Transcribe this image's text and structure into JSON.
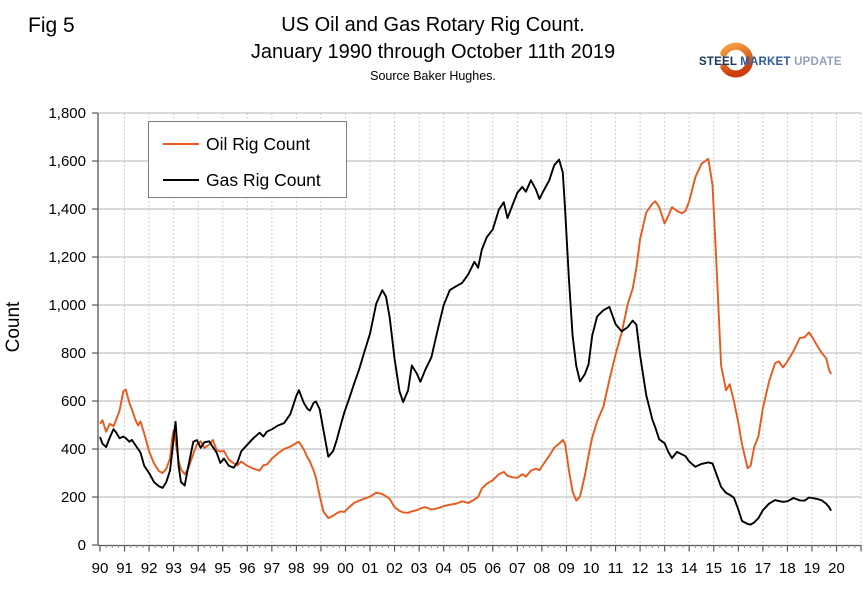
{
  "figure": {
    "fig_label": "Fig 5"
  },
  "logo": {
    "steel": "STEEL",
    "market": "MARKET",
    "update": "UPDATE",
    "swoosh_color_top": "#f6a33f",
    "swoosh_color_bottom": "#cc3d0f"
  },
  "chart_data": {
    "type": "line",
    "title_line1": "US Oil and Gas Rotary Rig Count.",
    "title_line2": "January 1990 through October 11th 2019",
    "source": "Source Baker Hughes.",
    "ylabel": "Count",
    "xlabel": "",
    "ylim": [
      0,
      1800
    ],
    "ytick_step": 200,
    "grid": {
      "horizontal": "solid",
      "vertical": "dotted"
    },
    "legend_position": "top-left-inside",
    "y_tick_labels": [
      "0",
      "200",
      "400",
      "600",
      "800",
      "1,000",
      "1,200",
      "1,400",
      "1,600",
      "1,800"
    ],
    "x_tick_labels": [
      "90",
      "91",
      "92",
      "93",
      "94",
      "95",
      "96",
      "97",
      "98",
      "99",
      "00",
      "01",
      "02",
      "03",
      "04",
      "05",
      "06",
      "07",
      "08",
      "09",
      "10",
      "11",
      "12",
      "13",
      "14",
      "15",
      "16",
      "17",
      "18",
      "19",
      "20"
    ],
    "x_start_year": 1990,
    "x_end_year": 2021,
    "x": [
      1990.0,
      1990.1,
      1990.25,
      1990.4,
      1990.55,
      1990.65,
      1990.8,
      1990.95,
      1991.05,
      1991.2,
      1991.3,
      1991.45,
      1991.55,
      1991.65,
      1991.8,
      1992.0,
      1992.2,
      1992.4,
      1992.55,
      1992.7,
      1992.85,
      1992.95,
      1993.0,
      1993.08,
      1993.2,
      1993.3,
      1993.45,
      1993.6,
      1993.8,
      1993.95,
      1994.1,
      1994.25,
      1994.45,
      1994.6,
      1994.75,
      1994.9,
      1995.05,
      1995.25,
      1995.45,
      1995.6,
      1995.75,
      1996.0,
      1996.25,
      1996.5,
      1996.65,
      1996.8,
      1997.0,
      1997.25,
      1997.5,
      1997.75,
      1998.0,
      1998.1,
      1998.3,
      1998.45,
      1998.55,
      1998.7,
      1998.8,
      1998.95,
      1999.1,
      1999.3,
      1999.5,
      1999.65,
      1999.8,
      1999.95,
      2000.15,
      2000.35,
      2000.55,
      2000.75,
      2001.0,
      2001.25,
      2001.5,
      2001.65,
      2001.8,
      2002.0,
      2002.2,
      2002.35,
      2002.55,
      2002.7,
      2002.9,
      2003.05,
      2003.25,
      2003.5,
      2003.75,
      2004.0,
      2004.25,
      2004.5,
      2004.75,
      2005.0,
      2005.25,
      2005.4,
      2005.55,
      2005.75,
      2006.0,
      2006.25,
      2006.45,
      2006.6,
      2006.8,
      2007.0,
      2007.2,
      2007.35,
      2007.55,
      2007.75,
      2007.9,
      2008.05,
      2008.3,
      2008.5,
      2008.7,
      2008.85,
      2008.95,
      2009.1,
      2009.25,
      2009.4,
      2009.55,
      2009.75,
      2009.9,
      2010.05,
      2010.25,
      2010.5,
      2010.75,
      2011.0,
      2011.25,
      2011.5,
      2011.7,
      2011.85,
      2012.0,
      2012.25,
      2012.5,
      2012.62,
      2012.78,
      2013.0,
      2013.15,
      2013.3,
      2013.5,
      2013.7,
      2013.85,
      2014.0,
      2014.25,
      2014.5,
      2014.78,
      2014.95,
      2015.1,
      2015.3,
      2015.5,
      2015.65,
      2015.82,
      2016.0,
      2016.15,
      2016.38,
      2016.5,
      2016.65,
      2016.82,
      2017.0,
      2017.25,
      2017.5,
      2017.65,
      2017.82,
      2018.0,
      2018.25,
      2018.5,
      2018.7,
      2018.88,
      2019.0,
      2019.2,
      2019.4,
      2019.58,
      2019.7,
      2019.78
    ],
    "series": [
      {
        "name": "Oil Rig Count",
        "color": "#e8591b",
        "values": [
          505,
          520,
          472,
          505,
          495,
          520,
          560,
          640,
          648,
          590,
          565,
          520,
          498,
          515,
          465,
          390,
          340,
          308,
          300,
          318,
          360,
          452,
          478,
          430,
          350,
          315,
          295,
          320,
          380,
          420,
          432,
          405,
          418,
          438,
          395,
          390,
          392,
          355,
          340,
          332,
          348,
          330,
          318,
          310,
          332,
          335,
          360,
          382,
          400,
          410,
          425,
          430,
          398,
          365,
          348,
          310,
          280,
          205,
          140,
          112,
          122,
          133,
          140,
          138,
          158,
          175,
          185,
          192,
          202,
          218,
          212,
          203,
          192,
          158,
          142,
          136,
          134,
          140,
          145,
          152,
          158,
          148,
          153,
          162,
          168,
          172,
          182,
          175,
          190,
          200,
          235,
          255,
          270,
          295,
          305,
          288,
          282,
          280,
          295,
          285,
          310,
          318,
          312,
          335,
          372,
          405,
          422,
          438,
          420,
          312,
          222,
          185,
          202,
          290,
          372,
          448,
          515,
          575,
          688,
          795,
          885,
          1005,
          1068,
          1155,
          1275,
          1385,
          1422,
          1432,
          1408,
          1340,
          1372,
          1408,
          1392,
          1382,
          1392,
          1432,
          1532,
          1588,
          1609,
          1500,
          1192,
          748,
          645,
          670,
          600,
          510,
          420,
          320,
          330,
          410,
          452,
          570,
          680,
          758,
          765,
          740,
          765,
          808,
          862,
          866,
          886,
          868,
          832,
          800,
          778,
          730,
          712
        ]
      },
      {
        "name": "Gas Rig Count",
        "color": "#000000",
        "values": [
          450,
          422,
          408,
          448,
          483,
          470,
          445,
          452,
          445,
          430,
          438,
          415,
          400,
          385,
          330,
          300,
          262,
          245,
          238,
          262,
          310,
          395,
          450,
          513,
          330,
          262,
          248,
          330,
          430,
          437,
          405,
          428,
          432,
          408,
          385,
          342,
          360,
          330,
          322,
          345,
          390,
          418,
          445,
          468,
          452,
          472,
          482,
          498,
          508,
          545,
          622,
          645,
          592,
          568,
          560,
          592,
          598,
          565,
          480,
          368,
          392,
          440,
          498,
          552,
          610,
          672,
          730,
          798,
          882,
          1005,
          1062,
          1035,
          948,
          775,
          640,
          596,
          645,
          748,
          715,
          680,
          730,
          782,
          895,
          1000,
          1062,
          1078,
          1092,
          1128,
          1180,
          1155,
          1230,
          1282,
          1315,
          1398,
          1428,
          1362,
          1415,
          1468,
          1492,
          1472,
          1520,
          1482,
          1442,
          1472,
          1520,
          1582,
          1606,
          1552,
          1390,
          1110,
          872,
          745,
          682,
          712,
          752,
          872,
          952,
          978,
          992,
          920,
          890,
          908,
          935,
          918,
          790,
          625,
          522,
          490,
          440,
          424,
          388,
          362,
          388,
          378,
          370,
          348,
          326,
          338,
          344,
          340,
          298,
          242,
          217,
          209,
          197,
          148,
          100,
          88,
          85,
          94,
          112,
          145,
          172,
          187,
          183,
          180,
          182,
          196,
          186,
          185,
          198,
          196,
          192,
          186,
          172,
          158,
          143
        ]
      }
    ]
  }
}
